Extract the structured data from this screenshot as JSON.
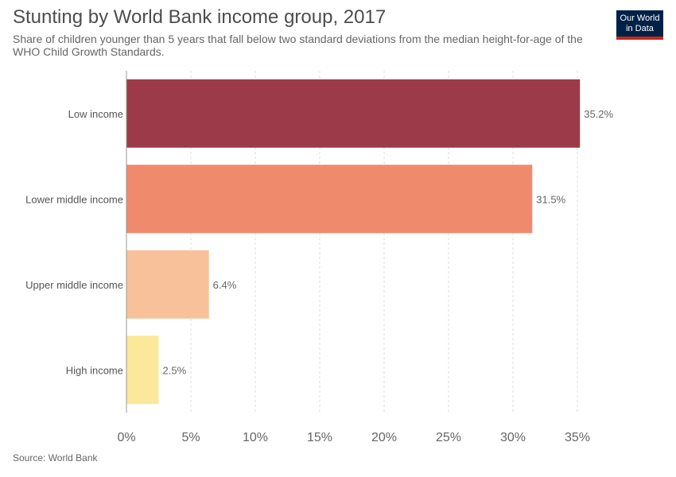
{
  "header": {
    "title": "Stunting by World Bank income group, 2017",
    "subtitle": "Share of children younger than 5 years that fall below two standard deviations from the median height-for-age of the WHO Child Growth Standards."
  },
  "logo": {
    "line1": "Our World",
    "line2": "in Data",
    "bg_color": "#002147",
    "accent_color": "#ce261e"
  },
  "footer": {
    "source": "Source: World Bank"
  },
  "chart_data": {
    "type": "bar",
    "orientation": "horizontal",
    "title": "Stunting by World Bank income group, 2017",
    "categories": [
      "Low income",
      "Lower middle income",
      "Upper middle income",
      "High income"
    ],
    "values": [
      35.2,
      31.5,
      6.4,
      2.5
    ],
    "value_labels": [
      "35.2%",
      "31.5%",
      "6.4%",
      "2.5%"
    ],
    "colors": [
      "#9c3a49",
      "#ef8a6c",
      "#f8c199",
      "#fbe89a"
    ],
    "xlim": [
      0,
      35
    ],
    "xticks": [
      0,
      5,
      10,
      15,
      20,
      25,
      30,
      35
    ],
    "xtick_labels": [
      "0%",
      "5%",
      "10%",
      "15%",
      "20%",
      "25%",
      "30%",
      "35%"
    ],
    "grid": true,
    "xlabel": "",
    "ylabel": ""
  }
}
